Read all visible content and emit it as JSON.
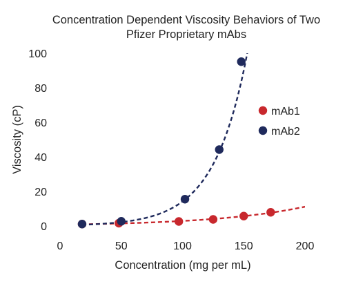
{
  "chart_data": {
    "type": "scatter",
    "title_lines": [
      "Concentration Dependent  Viscosity Behaviors of Two",
      "Pfizer Proprietary mAbs"
    ],
    "xlabel": "Concentration (mg per mL)",
    "ylabel": "Viscosity (cP)",
    "xlim": [
      0,
      200
    ],
    "ylim": [
      0,
      100
    ],
    "xticks": [
      0,
      50,
      100,
      150,
      200
    ],
    "yticks": [
      0,
      20,
      40,
      60,
      80,
      100
    ],
    "grid": false,
    "legend_position": "right",
    "series": [
      {
        "name": "mAb1",
        "color": "#c8282d",
        "points": [
          [
            18,
            1.1
          ],
          [
            48,
            1.6
          ],
          [
            97,
            2.6
          ],
          [
            125,
            3.8
          ],
          [
            150,
            5.7
          ],
          [
            172,
            7.9
          ]
        ],
        "trendline": {
          "type": "exponential",
          "a": 0.75,
          "b": 0.0135,
          "x_range": [
            18,
            200
          ]
        }
      },
      {
        "name": "mAb2",
        "color": "#1f2a5c",
        "points": [
          [
            18,
            1.1
          ],
          [
            50,
            2.7
          ],
          [
            102,
            15.5
          ],
          [
            130,
            44.2
          ],
          [
            148,
            95.1
          ]
        ],
        "trendline": {
          "type": "exponential",
          "a": 0.35,
          "b": 0.037,
          "x_range": [
            18,
            155.5
          ]
        }
      }
    ]
  }
}
